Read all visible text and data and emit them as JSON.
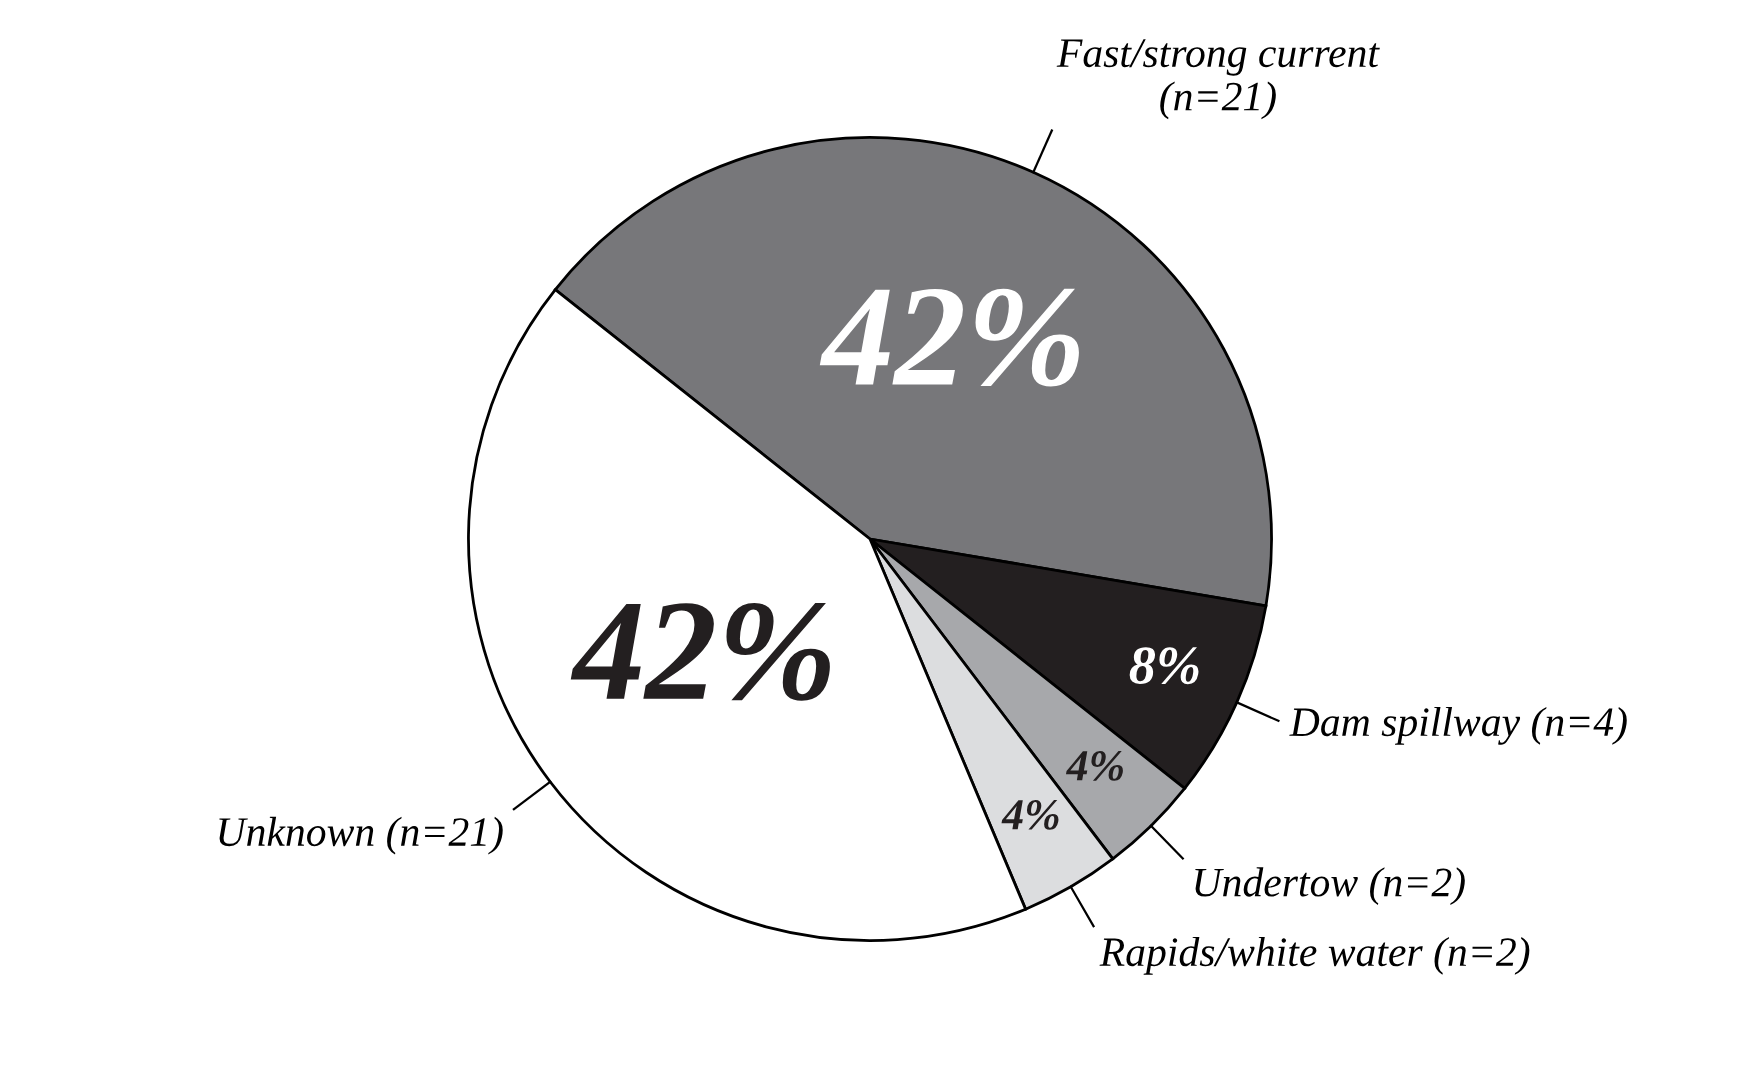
{
  "chart_data": {
    "type": "pie",
    "categories": [
      "Fast/strong current\n(n=21)",
      "Dam spillway (n=4)",
      "Undertow (n=2)",
      "Rapids/white water (n=2)",
      "Unknown (n=21)"
    ],
    "values": [
      42,
      8,
      4,
      4,
      42
    ],
    "value_labels": [
      "42%",
      "8%",
      "4%",
      "4%",
      "42%"
    ],
    "colors": [
      "#77777a",
      "#231f20",
      "#a7a8ab",
      "#dcdddf",
      "#ffffff"
    ],
    "legend": false
  }
}
